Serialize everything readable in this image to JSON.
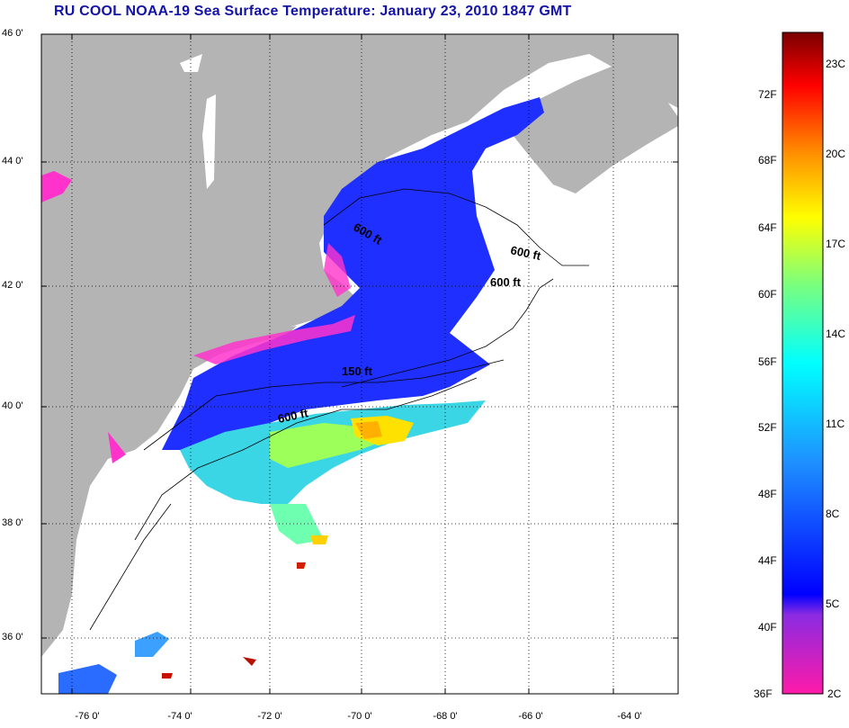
{
  "title": "RU COOL  NOAA-19  Sea Surface Temperature:  January 23, 2010 1847 GMT",
  "lat_labels": [
    "46 0'",
    "44 0'",
    "42 0'",
    "40 0'",
    "38 0'",
    "36 0'"
  ],
  "lon_labels": [
    "-76 0'",
    "-74 0'",
    "-72 0'",
    "-70 0'",
    "-68 0'",
    "-66 0'",
    "-64 0'"
  ],
  "isobaths": [
    "600 ft",
    "600 ft",
    "600 ft",
    "150 ft",
    "600 ft"
  ],
  "colorbar": {
    "fahrenheit": [
      "72F",
      "68F",
      "64F",
      "60F",
      "56F",
      "52F",
      "48F",
      "44F",
      "40F",
      "36F"
    ],
    "celsius": [
      "23C",
      "20C",
      "17C",
      "14C",
      "11C",
      "8C",
      "5C",
      "2C"
    ]
  },
  "colors": {
    "title": "#1313a8",
    "land": "#b4b4b4",
    "no_data": "#ffffff",
    "grid": "#000000"
  }
}
